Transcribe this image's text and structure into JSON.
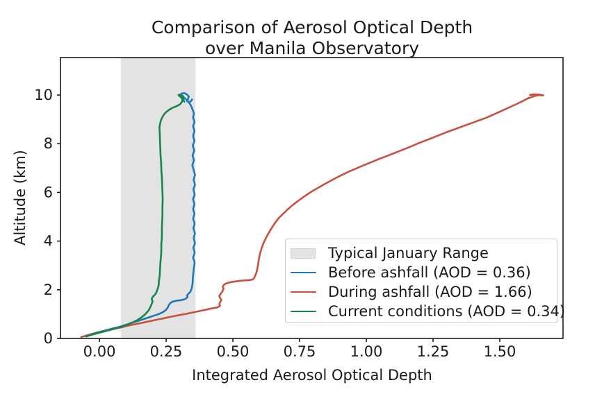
{
  "figure": {
    "title_line1": "Comparison of Aerosol Optical Depth",
    "title_line2": "over Manila Observatory"
  },
  "chart_data": {
    "type": "line",
    "title": "Comparison of Aerosol Optical Depth over Manila Observatory",
    "xlabel": "Integrated Aerosol Optical Depth",
    "ylabel": "Altitude (km)",
    "xlim": [
      -0.146,
      1.737
    ],
    "ylim": [
      0,
      11.54
    ],
    "grid": false,
    "legend_position": "center right",
    "frame_color": "#1a1a1a",
    "xticks": {
      "values": [
        0,
        0.25,
        0.5,
        0.75,
        1.0,
        1.25,
        1.5
      ],
      "labels": [
        "0.00",
        "0.25",
        "0.50",
        "0.75",
        "1.00",
        "1.25",
        "1.50"
      ]
    },
    "yticks": {
      "values": [
        0,
        2,
        4,
        6,
        8,
        10
      ],
      "labels": [
        "0",
        "2",
        "4",
        "6",
        "8",
        "10"
      ]
    },
    "band": {
      "label": "Typical January Range",
      "x0": 0.08,
      "x1": 0.36,
      "color": "#e3e3e3"
    },
    "legend": [
      {
        "swatch": "patch",
        "color": "#e3e3e3",
        "label": "Typical January Range"
      },
      {
        "swatch": "line",
        "color": "#1f77b4",
        "label": "Before ashfall (AOD = 0.36)"
      },
      {
        "swatch": "line",
        "color": "#c8503e",
        "label": "During ashfall (AOD = 1.66)"
      },
      {
        "swatch": "line",
        "color": "#15854d",
        "label": "Current conditions (AOD = 0.34)"
      }
    ],
    "series": [
      {
        "name": "Before ashfall",
        "total_aod": 0.36,
        "color": "#1f77b4",
        "points": [
          [
            -0.055,
            0.1
          ],
          [
            -0.04,
            0.15
          ],
          [
            -0.02,
            0.21
          ],
          [
            0.0,
            0.27
          ],
          [
            0.025,
            0.34
          ],
          [
            0.05,
            0.41
          ],
          [
            0.075,
            0.48
          ],
          [
            0.1,
            0.56
          ],
          [
            0.125,
            0.65
          ],
          [
            0.15,
            0.74
          ],
          [
            0.175,
            0.83
          ],
          [
            0.2,
            0.92
          ],
          [
            0.222,
            1.0
          ],
          [
            0.238,
            1.08
          ],
          [
            0.249,
            1.17
          ],
          [
            0.256,
            1.27
          ],
          [
            0.26,
            1.37
          ],
          [
            0.266,
            1.46
          ],
          [
            0.276,
            1.52
          ],
          [
            0.289,
            1.55
          ],
          [
            0.303,
            1.57
          ],
          [
            0.316,
            1.6
          ],
          [
            0.325,
            1.64
          ],
          [
            0.33,
            1.7
          ],
          [
            0.328,
            1.76
          ],
          [
            0.333,
            1.83
          ],
          [
            0.34,
            1.91
          ],
          [
            0.344,
            2.0
          ],
          [
            0.347,
            2.12
          ],
          [
            0.349,
            2.28
          ],
          [
            0.35,
            2.48
          ],
          [
            0.352,
            2.7
          ],
          [
            0.354,
            2.92
          ],
          [
            0.357,
            3.12
          ],
          [
            0.351,
            3.32
          ],
          [
            0.357,
            3.52
          ],
          [
            0.352,
            3.72
          ],
          [
            0.358,
            3.92
          ],
          [
            0.353,
            4.12
          ],
          [
            0.358,
            4.32
          ],
          [
            0.352,
            4.52
          ],
          [
            0.357,
            4.72
          ],
          [
            0.351,
            4.92
          ],
          [
            0.356,
            5.12
          ],
          [
            0.351,
            5.32
          ],
          [
            0.356,
            5.52
          ],
          [
            0.351,
            5.72
          ],
          [
            0.357,
            5.92
          ],
          [
            0.352,
            6.12
          ],
          [
            0.358,
            6.32
          ],
          [
            0.353,
            6.52
          ],
          [
            0.358,
            6.72
          ],
          [
            0.353,
            6.92
          ],
          [
            0.348,
            7.12
          ],
          [
            0.354,
            7.32
          ],
          [
            0.349,
            7.52
          ],
          [
            0.355,
            7.72
          ],
          [
            0.35,
            7.92
          ],
          [
            0.356,
            8.12
          ],
          [
            0.351,
            8.32
          ],
          [
            0.356,
            8.52
          ],
          [
            0.351,
            8.72
          ],
          [
            0.356,
            8.9
          ],
          [
            0.351,
            9.08
          ],
          [
            0.354,
            9.25
          ],
          [
            0.349,
            9.4
          ],
          [
            0.345,
            9.52
          ],
          [
            0.34,
            9.62
          ],
          [
            0.334,
            9.72
          ],
          [
            0.327,
            9.8
          ],
          [
            0.318,
            9.88
          ],
          [
            0.309,
            9.94
          ],
          [
            0.303,
            10.0
          ],
          [
            0.308,
            10.06
          ],
          [
            0.318,
            10.08
          ],
          [
            0.328,
            10.02
          ],
          [
            0.335,
            9.94
          ],
          [
            0.332,
            9.84
          ],
          [
            0.328,
            9.76
          ],
          [
            0.334,
            9.7
          ],
          [
            0.342,
            9.74
          ],
          [
            0.347,
            9.82
          ]
        ]
      },
      {
        "name": "During ashfall",
        "total_aod": 1.66,
        "color": "#c8503e",
        "points": [
          [
            -0.068,
            0.06
          ],
          [
            -0.05,
            0.11
          ],
          [
            -0.03,
            0.17
          ],
          [
            -0.005,
            0.23
          ],
          [
            0.02,
            0.3
          ],
          [
            0.05,
            0.38
          ],
          [
            0.08,
            0.45
          ],
          [
            0.11,
            0.53
          ],
          [
            0.145,
            0.61
          ],
          [
            0.18,
            0.69
          ],
          [
            0.215,
            0.77
          ],
          [
            0.25,
            0.85
          ],
          [
            0.285,
            0.93
          ],
          [
            0.32,
            1.0
          ],
          [
            0.355,
            1.08
          ],
          [
            0.39,
            1.16
          ],
          [
            0.42,
            1.23
          ],
          [
            0.443,
            1.28
          ],
          [
            0.452,
            1.34
          ],
          [
            0.449,
            1.42
          ],
          [
            0.453,
            1.5
          ],
          [
            0.457,
            1.58
          ],
          [
            0.452,
            1.66
          ],
          [
            0.449,
            1.74
          ],
          [
            0.453,
            1.82
          ],
          [
            0.459,
            1.9
          ],
          [
            0.463,
            1.98
          ],
          [
            0.465,
            2.06
          ],
          [
            0.462,
            2.13
          ],
          [
            0.466,
            2.2
          ],
          [
            0.474,
            2.26
          ],
          [
            0.487,
            2.3
          ],
          [
            0.503,
            2.33
          ],
          [
            0.52,
            2.36
          ],
          [
            0.538,
            2.38
          ],
          [
            0.556,
            2.39
          ],
          [
            0.571,
            2.41
          ],
          [
            0.578,
            2.46
          ],
          [
            0.583,
            2.56
          ],
          [
            0.588,
            2.7
          ],
          [
            0.592,
            2.88
          ],
          [
            0.595,
            3.08
          ],
          [
            0.598,
            3.3
          ],
          [
            0.602,
            3.5
          ],
          [
            0.608,
            3.72
          ],
          [
            0.616,
            3.95
          ],
          [
            0.625,
            4.15
          ],
          [
            0.635,
            4.35
          ],
          [
            0.646,
            4.55
          ],
          [
            0.658,
            4.75
          ],
          [
            0.672,
            4.95
          ],
          [
            0.688,
            5.12
          ],
          [
            0.705,
            5.3
          ],
          [
            0.724,
            5.48
          ],
          [
            0.744,
            5.65
          ],
          [
            0.766,
            5.82
          ],
          [
            0.79,
            6.0
          ],
          [
            0.815,
            6.16
          ],
          [
            0.842,
            6.33
          ],
          [
            0.87,
            6.5
          ],
          [
            0.9,
            6.67
          ],
          [
            0.932,
            6.84
          ],
          [
            0.966,
            7.0
          ],
          [
            1.002,
            7.17
          ],
          [
            1.04,
            7.34
          ],
          [
            1.078,
            7.5
          ],
          [
            1.115,
            7.66
          ],
          [
            1.152,
            7.82
          ],
          [
            1.17,
            7.9
          ],
          [
            1.2,
            8.04
          ],
          [
            1.235,
            8.19
          ],
          [
            1.27,
            8.34
          ],
          [
            1.305,
            8.49
          ],
          [
            1.34,
            8.63
          ],
          [
            1.375,
            8.77
          ],
          [
            1.41,
            8.91
          ],
          [
            1.445,
            9.05
          ],
          [
            1.475,
            9.19
          ],
          [
            1.503,
            9.33
          ],
          [
            1.527,
            9.45
          ],
          [
            1.549,
            9.56
          ],
          [
            1.569,
            9.66
          ],
          [
            1.587,
            9.76
          ],
          [
            1.603,
            9.85
          ],
          [
            1.617,
            9.91
          ],
          [
            1.63,
            9.96
          ],
          [
            1.643,
            9.99
          ],
          [
            1.655,
            10.0
          ],
          [
            1.663,
            9.99
          ],
          [
            1.648,
            10.02
          ],
          [
            1.628,
            10.03
          ],
          [
            1.613,
            10.01
          ],
          [
            1.635,
            10.0
          ],
          [
            1.66,
            9.99
          ]
        ]
      },
      {
        "name": "Current conditions",
        "total_aod": 0.34,
        "color": "#15854d",
        "points": [
          [
            -0.05,
            0.08
          ],
          [
            -0.035,
            0.13
          ],
          [
            -0.015,
            0.19
          ],
          [
            0.005,
            0.25
          ],
          [
            0.03,
            0.32
          ],
          [
            0.055,
            0.4
          ],
          [
            0.08,
            0.47
          ],
          [
            0.1,
            0.55
          ],
          [
            0.12,
            0.64
          ],
          [
            0.14,
            0.74
          ],
          [
            0.155,
            0.85
          ],
          [
            0.168,
            0.96
          ],
          [
            0.178,
            1.07
          ],
          [
            0.186,
            1.18
          ],
          [
            0.191,
            1.3
          ],
          [
            0.196,
            1.42
          ],
          [
            0.199,
            1.52
          ],
          [
            0.196,
            1.62
          ],
          [
            0.199,
            1.7
          ],
          [
            0.206,
            1.78
          ],
          [
            0.212,
            1.86
          ],
          [
            0.215,
            1.95
          ],
          [
            0.219,
            2.06
          ],
          [
            0.222,
            2.2
          ],
          [
            0.223,
            2.38
          ],
          [
            0.226,
            2.58
          ],
          [
            0.227,
            2.8
          ],
          [
            0.228,
            3.05
          ],
          [
            0.23,
            3.3
          ],
          [
            0.232,
            3.58
          ],
          [
            0.232,
            3.88
          ],
          [
            0.234,
            4.18
          ],
          [
            0.234,
            4.5
          ],
          [
            0.235,
            4.8
          ],
          [
            0.236,
            5.1
          ],
          [
            0.236,
            5.42
          ],
          [
            0.237,
            5.72
          ],
          [
            0.236,
            6.02
          ],
          [
            0.235,
            6.32
          ],
          [
            0.234,
            6.62
          ],
          [
            0.232,
            6.92
          ],
          [
            0.231,
            7.22
          ],
          [
            0.229,
            7.52
          ],
          [
            0.228,
            7.82
          ],
          [
            0.227,
            8.12
          ],
          [
            0.226,
            8.42
          ],
          [
            0.225,
            8.68
          ],
          [
            0.228,
            8.85
          ],
          [
            0.231,
            8.98
          ],
          [
            0.236,
            9.1
          ],
          [
            0.243,
            9.22
          ],
          [
            0.252,
            9.32
          ],
          [
            0.262,
            9.4
          ],
          [
            0.273,
            9.47
          ],
          [
            0.284,
            9.52
          ],
          [
            0.294,
            9.57
          ],
          [
            0.303,
            9.63
          ],
          [
            0.309,
            9.72
          ],
          [
            0.311,
            9.82
          ],
          [
            0.307,
            9.9
          ],
          [
            0.3,
            9.96
          ],
          [
            0.296,
            10.0
          ],
          [
            0.303,
            10.02
          ],
          [
            0.312,
            9.97
          ],
          [
            0.317,
            9.89
          ],
          [
            0.313,
            9.8
          ],
          [
            0.318,
            9.73
          ]
        ]
      }
    ]
  }
}
